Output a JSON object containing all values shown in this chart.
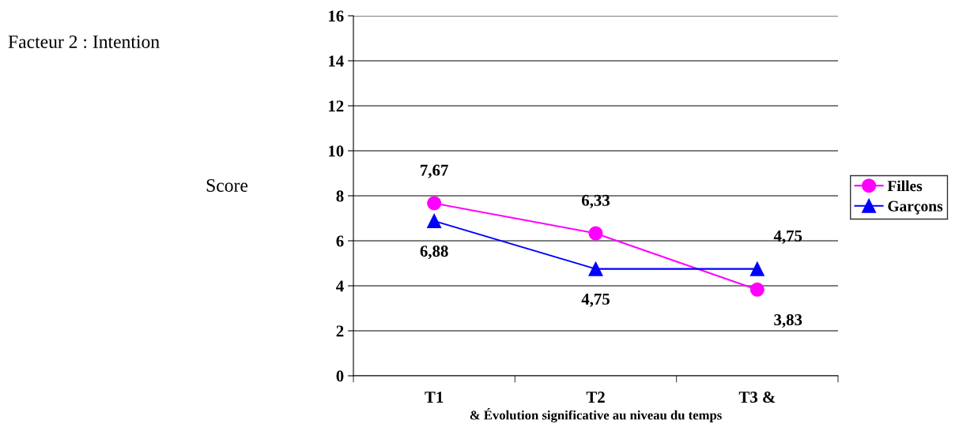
{
  "chart_data": {
    "type": "line",
    "title": "Facteur 2 : Intention",
    "ylabel": "Score",
    "xlabel": "& Évolution significative au niveau du temps",
    "categories": [
      "T1",
      "T2",
      "T3 &"
    ],
    "series": [
      {
        "name": "Filles",
        "color": "#ff00ff",
        "marker": "circle",
        "values": [
          7.67,
          6.33,
          3.83
        ],
        "value_labels": [
          "7,67",
          "6,33",
          "3,83"
        ]
      },
      {
        "name": "Garçons",
        "color": "#0000ff",
        "marker": "triangle",
        "values": [
          6.88,
          4.75,
          4.75
        ],
        "value_labels": [
          "6,88",
          "4,75",
          "4,75"
        ]
      }
    ],
    "ylim": [
      0,
      16
    ],
    "yticks": [
      0,
      2,
      4,
      6,
      8,
      10,
      12,
      14,
      16
    ],
    "grid": "y",
    "legend": "right",
    "line_style": "solid"
  }
}
